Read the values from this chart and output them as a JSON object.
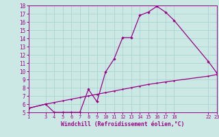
{
  "xlabel": "Windchill (Refroidissement éolien,°C)",
  "bg_color": "#cce8e4",
  "grid_color": "#aad4d0",
  "line_color": "#990088",
  "xticks": [
    1,
    3,
    4,
    5,
    6,
    7,
    8,
    9,
    10,
    11,
    12,
    13,
    14,
    15,
    16,
    17,
    18,
    22,
    23
  ],
  "yticks": [
    5,
    6,
    7,
    8,
    9,
    10,
    11,
    12,
    13,
    14,
    15,
    16,
    17,
    18
  ],
  "xlim": [
    1,
    23
  ],
  "ylim": [
    5,
    18
  ],
  "line1_x": [
    1,
    3,
    4,
    5,
    6,
    7,
    8,
    9,
    10,
    11,
    12,
    13,
    14,
    15,
    16,
    17,
    18,
    22,
    23
  ],
  "line1_y": [
    5.5,
    6.0,
    5.0,
    5.0,
    5.0,
    5.0,
    7.8,
    6.3,
    9.9,
    11.5,
    14.1,
    14.1,
    16.8,
    17.2,
    17.9,
    17.2,
    16.2,
    11.2,
    9.8
  ],
  "line2_x": [
    1,
    3,
    4,
    5,
    6,
    7,
    8,
    9,
    10,
    11,
    12,
    13,
    14,
    15,
    16,
    17,
    18,
    22,
    23
  ],
  "line2_y": [
    5.5,
    6.0,
    6.2,
    6.4,
    6.6,
    6.8,
    7.0,
    7.2,
    7.4,
    7.6,
    7.8,
    8.0,
    8.2,
    8.4,
    8.55,
    8.7,
    8.85,
    9.4,
    9.6
  ]
}
